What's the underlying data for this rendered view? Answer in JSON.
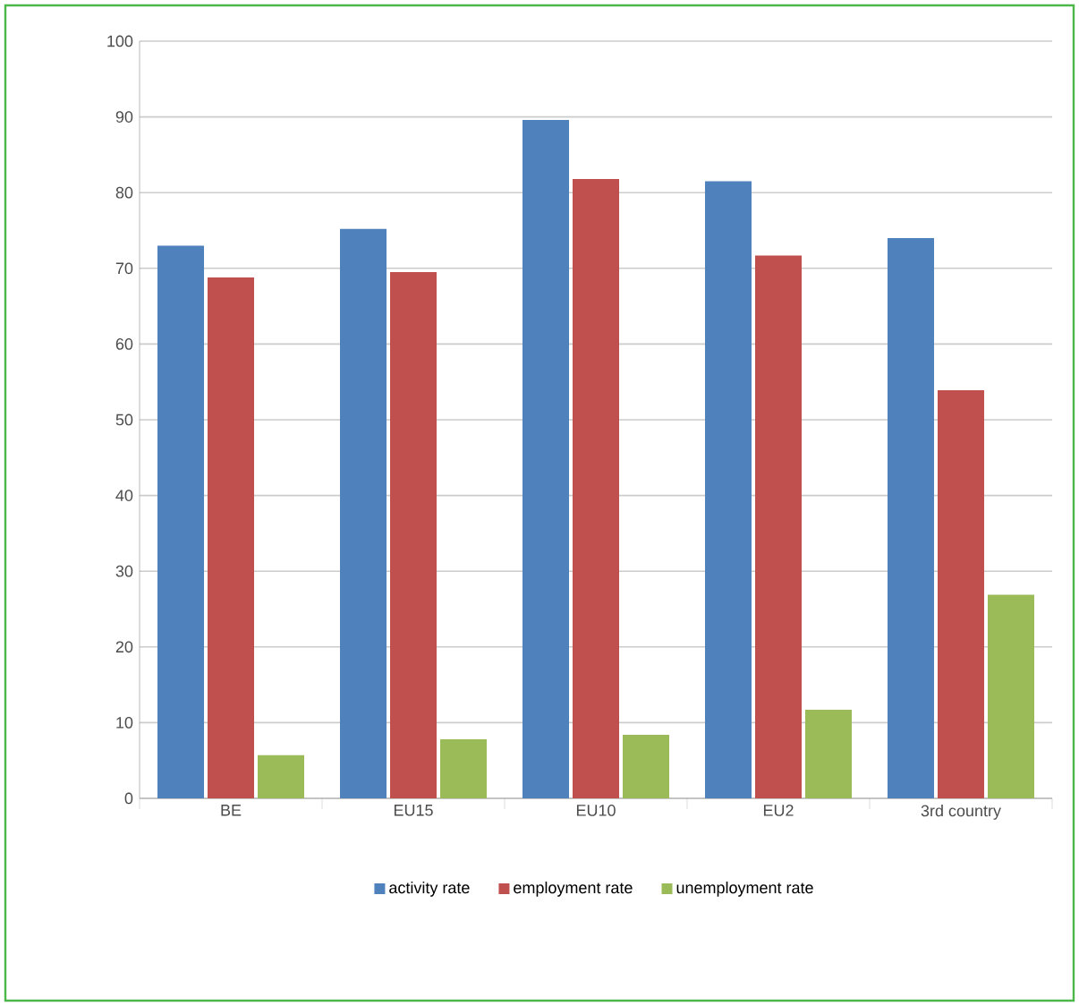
{
  "chart_data": {
    "type": "bar",
    "categories": [
      "BE",
      "EU15",
      "EU10",
      "EU2",
      "3rd country"
    ],
    "series": [
      {
        "name": "activity rate",
        "color": "#4f81bd",
        "values": [
          73,
          75.2,
          89.6,
          81.5,
          74
        ]
      },
      {
        "name": "employment rate",
        "color": "#c0504d",
        "values": [
          68.8,
          69.5,
          81.8,
          71.7,
          53.9
        ]
      },
      {
        "name": "unemployment rate",
        "color": "#9bbb59",
        "values": [
          5.7,
          7.8,
          8.4,
          11.7,
          26.9
        ]
      }
    ],
    "ylim": [
      0,
      100
    ],
    "yticks": [
      0,
      10,
      20,
      30,
      40,
      50,
      60,
      70,
      80,
      90,
      100
    ],
    "grid": "y",
    "legend": "bottom"
  }
}
